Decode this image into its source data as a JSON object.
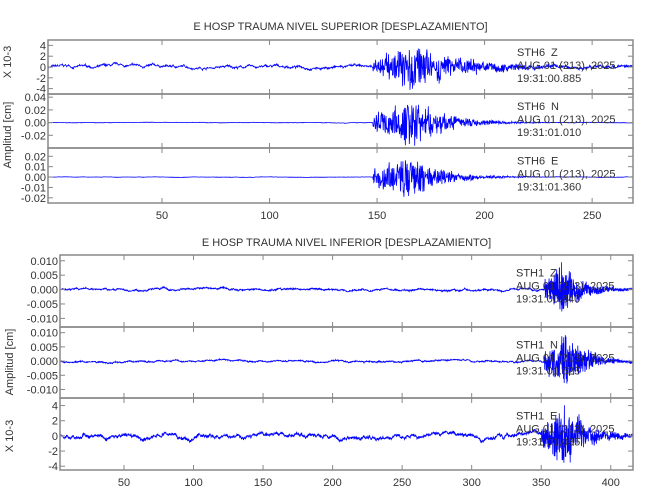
{
  "chart_data": [
    {
      "type": "line",
      "title": "E HOSP TRAUMA NIVEL SUPERIOR [DESPLAZAMIENTO]",
      "ylabel": "Amplitud [cm]",
      "xlim": [
        -3,
        269
      ],
      "xticks": [
        50,
        100,
        150,
        200,
        250
      ],
      "traces": [
        {
          "station": "STH6",
          "component": "Z",
          "date": "AUG 01 (213), 2025",
          "time": "19:31:00.885",
          "scale_label": "X 10-3",
          "ylim": [
            -5,
            5
          ],
          "yticks": [
            -4,
            -2,
            0,
            2,
            4
          ],
          "ytick_labels": [
            "-4",
            "-2",
            "0",
            "2",
            "4"
          ],
          "noise": 0.6,
          "peak": 4.8,
          "onset": 148,
          "peak_t": 165,
          "decay": 25
        },
        {
          "station": "STH6",
          "component": "N",
          "date": "AUG 01 (213), 2025",
          "time": "19:31:01.010",
          "ylim": [
            -0.04,
            0.045
          ],
          "yticks": [
            -0.02,
            0,
            0.02,
            0.04
          ],
          "ytick_labels": [
            "-0.02",
            "0.00",
            "0.02",
            "0.04"
          ],
          "noise": 0.0008,
          "peak": 0.042,
          "onset": 148,
          "peak_t": 167,
          "decay": 15
        },
        {
          "station": "STH6",
          "component": "E",
          "date": "AUG 01 (213), 2025",
          "time": "19:31:01.360",
          "ylim": [
            -0.025,
            0.028
          ],
          "yticks": [
            -0.02,
            -0.01,
            0,
            0.01,
            0.02
          ],
          "ytick_labels": [
            "-0.02",
            "-0.01",
            "0.00",
            "0.01",
            "0.02"
          ],
          "noise": 0.0004,
          "peak": 0.025,
          "onset": 148,
          "peak_t": 165,
          "decay": 14
        }
      ]
    },
    {
      "type": "line",
      "title": "E HOSP TRAUMA NIVEL INFERIOR [DESPLAZAMIENTO]",
      "ylabel": "Amplitud [cm]",
      "xlim": [
        4,
        416
      ],
      "xticks": [
        50,
        100,
        150,
        200,
        250,
        300,
        350,
        400
      ],
      "traces": [
        {
          "station": "STH1",
          "component": "Z",
          "date": "AUG 01 (213), 2025",
          "time": "19:31:00.840",
          "ylim": [
            -0.013,
            0.012
          ],
          "yticks": [
            -0.01,
            -0.005,
            0,
            0.005,
            0.01
          ],
          "ytick_labels": [
            "-0.010",
            "-0.005",
            "0.000",
            "0.005",
            "0.010"
          ],
          "noise": 0.0007,
          "peak": 0.011,
          "onset": 352,
          "peak_t": 365,
          "decay": 14
        },
        {
          "station": "STH1",
          "component": "N",
          "date": "AUG 01 (213), 2025",
          "time": "19:31:01.625",
          "ylim": [
            -0.013,
            0.012
          ],
          "yticks": [
            -0.01,
            -0.005,
            0,
            0.005,
            0.01
          ],
          "ytick_labels": [
            "-0.010",
            "-0.005",
            "0.000",
            "0.005",
            "0.010"
          ],
          "noise": 0.0006,
          "peak": 0.011,
          "onset": 352,
          "peak_t": 369,
          "decay": 14
        },
        {
          "station": "STH1",
          "component": "E",
          "date": "AUG 01 (213), 2025",
          "time": "19:31:01.085",
          "scale_label": "X 10-3",
          "ylim": [
            -4.5,
            5
          ],
          "yticks": [
            -4,
            -2,
            0,
            2,
            4
          ],
          "ytick_labels": [
            "-4",
            "-2",
            "0",
            "2",
            "4"
          ],
          "noise": 0.6,
          "peak": 4.6,
          "onset": 350,
          "peak_t": 367,
          "decay": 16
        }
      ]
    }
  ],
  "colors": {
    "trace": "#0000ff",
    "axis": "#888888",
    "text": "#333333"
  }
}
